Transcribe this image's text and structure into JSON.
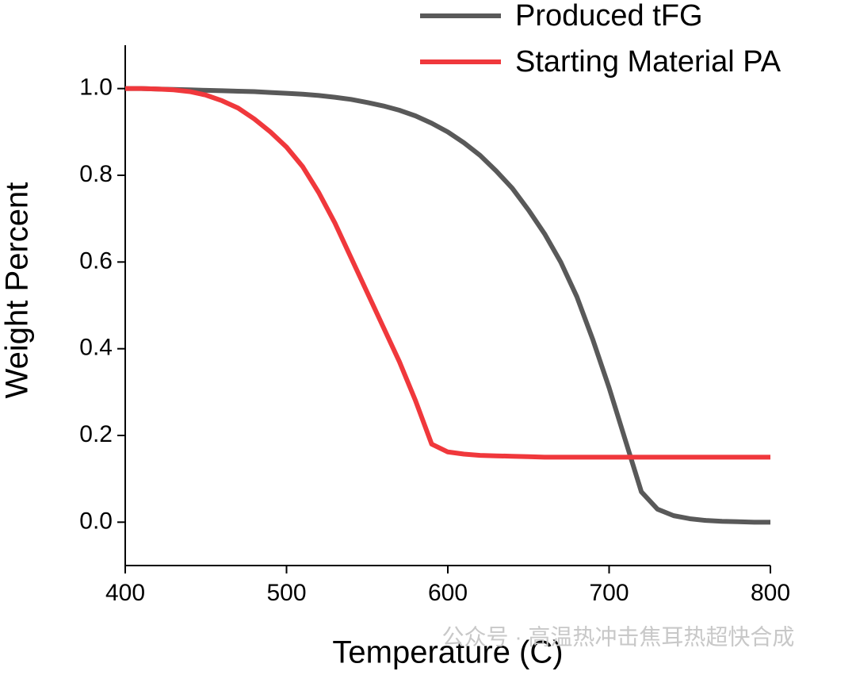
{
  "chart_data": {
    "type": "line",
    "x_label": "Temperature (C)",
    "y_label": "Weight Percent",
    "watermark": "公众号 · 高温热冲击焦耳热超快合成",
    "x": [
      400,
      410,
      420,
      430,
      440,
      450,
      460,
      470,
      480,
      490,
      500,
      510,
      520,
      530,
      540,
      550,
      560,
      570,
      580,
      590,
      600,
      610,
      620,
      630,
      640,
      650,
      660,
      670,
      680,
      690,
      700,
      710,
      720,
      730,
      740,
      750,
      760,
      770,
      780,
      790,
      800
    ],
    "series": [
      {
        "name": "Produced tFG",
        "color": "#595959",
        "values": [
          1.0,
          1.0,
          0.999,
          0.998,
          0.997,
          0.996,
          0.995,
          0.994,
          0.993,
          0.991,
          0.989,
          0.987,
          0.984,
          0.98,
          0.975,
          0.968,
          0.96,
          0.95,
          0.937,
          0.92,
          0.9,
          0.875,
          0.846,
          0.81,
          0.77,
          0.72,
          0.665,
          0.6,
          0.52,
          0.42,
          0.31,
          0.19,
          0.07,
          0.03,
          0.015,
          0.008,
          0.004,
          0.002,
          0.001,
          0.0,
          0.0
        ]
      },
      {
        "name": "Starting Material PA",
        "color": "#f0383c",
        "values": [
          1.0,
          1.0,
          0.999,
          0.997,
          0.993,
          0.985,
          0.972,
          0.955,
          0.93,
          0.9,
          0.865,
          0.82,
          0.76,
          0.69,
          0.61,
          0.53,
          0.45,
          0.37,
          0.28,
          0.18,
          0.162,
          0.157,
          0.154,
          0.153,
          0.152,
          0.151,
          0.15,
          0.15,
          0.15,
          0.15,
          0.15,
          0.15,
          0.15,
          0.15,
          0.15,
          0.15,
          0.15,
          0.15,
          0.15,
          0.15,
          0.15
        ]
      }
    ],
    "xlim": [
      400,
      800
    ],
    "ylim": [
      -0.1,
      1.1
    ],
    "xticks": [
      400,
      500,
      600,
      700,
      800
    ],
    "yticks": [
      {
        "value": 0,
        "label": "0.0"
      },
      0.2,
      0.4,
      0.6,
      0.8,
      {
        "value": 1,
        "label": "1.0"
      }
    ],
    "legend": "top-right",
    "grid": false
  }
}
